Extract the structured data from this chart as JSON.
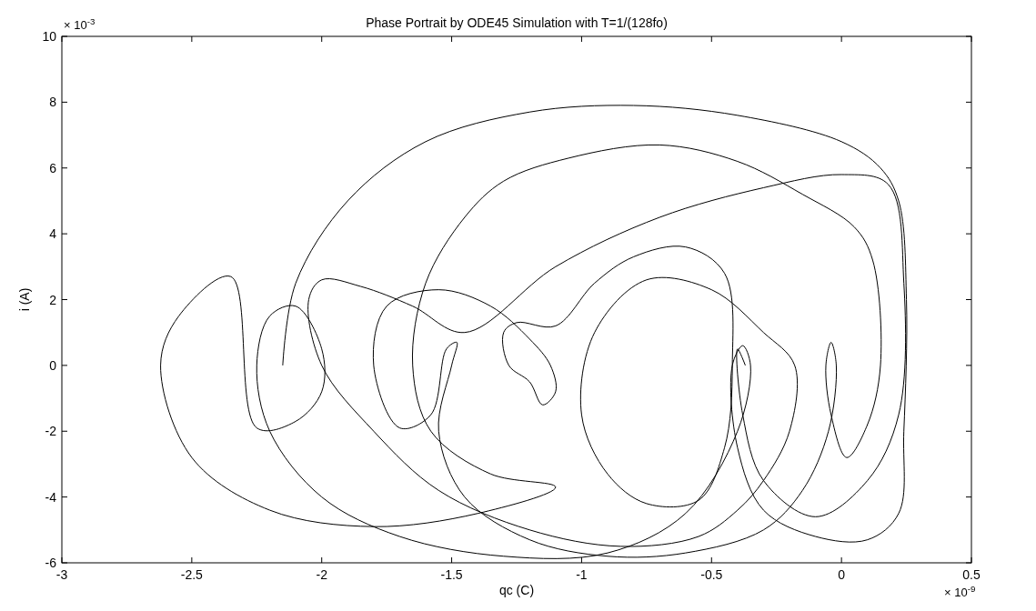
{
  "chart_data": {
    "type": "line",
    "title": "Phase Portrait by ODE45 Simulation with T=1/(128fo)",
    "xlabel": "qc (C)",
    "ylabel": "i (A)",
    "annotations": [
      "× 10$^{-3}$",
      "× 10$^{-9}$"
    ],
    "xlim": [
      -3,
      0.5
    ],
    "xticks": [
      -3,
      -2.5,
      -2,
      -1.5,
      -1,
      -0.5,
      0,
      0.5
    ],
    "ylim": [
      -6,
      10
    ],
    "yticks": [
      -6,
      -4,
      -2,
      0,
      2,
      4,
      6,
      8,
      10
    ],
    "grid": false,
    "marker": "none",
    "line_style": "solid",
    "series": [
      {
        "color": "#000000",
        "x": [
          -2.15,
          -2.1,
          -1.9,
          -1.6,
          -1.2,
          -0.8,
          -0.4,
          0,
          0.15,
          0.22,
          0.25,
          0.24,
          0.22,
          0.1,
          -0.1,
          -0.3,
          -0.4,
          -0.42,
          -0.38,
          -0.35,
          -0.4,
          -0.6,
          -0.9,
          -1.3,
          -1.7,
          -2.0,
          -2.2,
          -2.25,
          -2.2,
          -2.1,
          -2.0,
          -2.0,
          -2.1,
          -2.25,
          -2.35,
          -2.55,
          -2.62,
          -2.5,
          -2.2,
          -1.8,
          -1.4,
          -1.1,
          -1.35,
          -1.58,
          -1.65,
          -1.6,
          -1.45,
          -1.3,
          -1.05,
          -0.7,
          -0.4,
          -0.15,
          0.05,
          0.12,
          0.15,
          0.1,
          0.02,
          -0.04,
          -0.06,
          -0.04,
          -0.02,
          -0.05,
          -0.15,
          -0.3,
          -0.6,
          -0.9,
          -1.2,
          -1.45,
          -1.55,
          -1.5,
          -1.48,
          -1.52,
          -1.58,
          -1.7,
          -1.8,
          -1.75,
          -1.55,
          -1.35,
          -1.2,
          -1.12,
          -1.1,
          -1.15,
          -1.2,
          -1.28,
          -1.3,
          -1.25,
          -1.1,
          -0.95,
          -0.8,
          -0.6,
          -0.45,
          -0.42,
          -0.45,
          -0.55,
          -0.75,
          -0.9,
          -1.0,
          -0.95,
          -0.75,
          -0.5,
          -0.3,
          -0.18,
          -0.2,
          -0.3,
          -0.4,
          -0.55,
          -0.85,
          -1.2,
          -1.55,
          -1.8,
          -2.0,
          -2.05,
          -2.0,
          -1.85,
          -1.65,
          -1.45,
          -1.1,
          -0.7,
          -0.3,
          0,
          0.18,
          0.24,
          0.22,
          0.1,
          -0.1,
          -0.3,
          -0.38,
          -0.4,
          -0.37
        ],
        "values": [
          0,
          2.5,
          5,
          6.8,
          7.7,
          7.9,
          7.6,
          6.8,
          6,
          5,
          2,
          -2,
          -4.5,
          -5.3,
          -5.2,
          -4.4,
          -2.5,
          0,
          0.6,
          0,
          -2,
          -4.5,
          -5.7,
          -5.8,
          -5.2,
          -4,
          -2,
          0,
          1.5,
          1.8,
          0.5,
          -0.8,
          -1.7,
          -1.9,
          2.7,
          1.5,
          0,
          -2.8,
          -4.4,
          -4.9,
          -4.5,
          -3.7,
          -3.3,
          -2,
          0,
          2.5,
          4.5,
          5.6,
          6.3,
          6.7,
          6.2,
          5.2,
          4.2,
          3.2,
          0,
          -1.8,
          -2.8,
          -1.5,
          0,
          0.7,
          0,
          -2,
          -3.8,
          -5,
          -5.7,
          -5.8,
          -5.3,
          -4,
          -2,
          0,
          0.7,
          0.5,
          -1.5,
          -1.9,
          0,
          1.8,
          2.3,
          1.8,
          0.8,
          0,
          -0.8,
          -1.2,
          -0.5,
          0,
          1,
          1.3,
          1.2,
          2.5,
          3.3,
          3.6,
          2.8,
          0,
          -2.5,
          -4.1,
          -4.2,
          -3.3,
          -1.5,
          1.0,
          2.6,
          2.3,
          1.0,
          0,
          -2,
          -3.5,
          -4.4,
          -5.2,
          -5.5,
          -5,
          -3.8,
          -2,
          0,
          2,
          2.6,
          2.4,
          1.8,
          1.0,
          3.0,
          4.5,
          5.4,
          5.8,
          5.5,
          2.5,
          -1.5,
          -3.5,
          -4.6,
          -3.5,
          -1.5,
          0.5,
          0
        ]
      }
    ]
  }
}
